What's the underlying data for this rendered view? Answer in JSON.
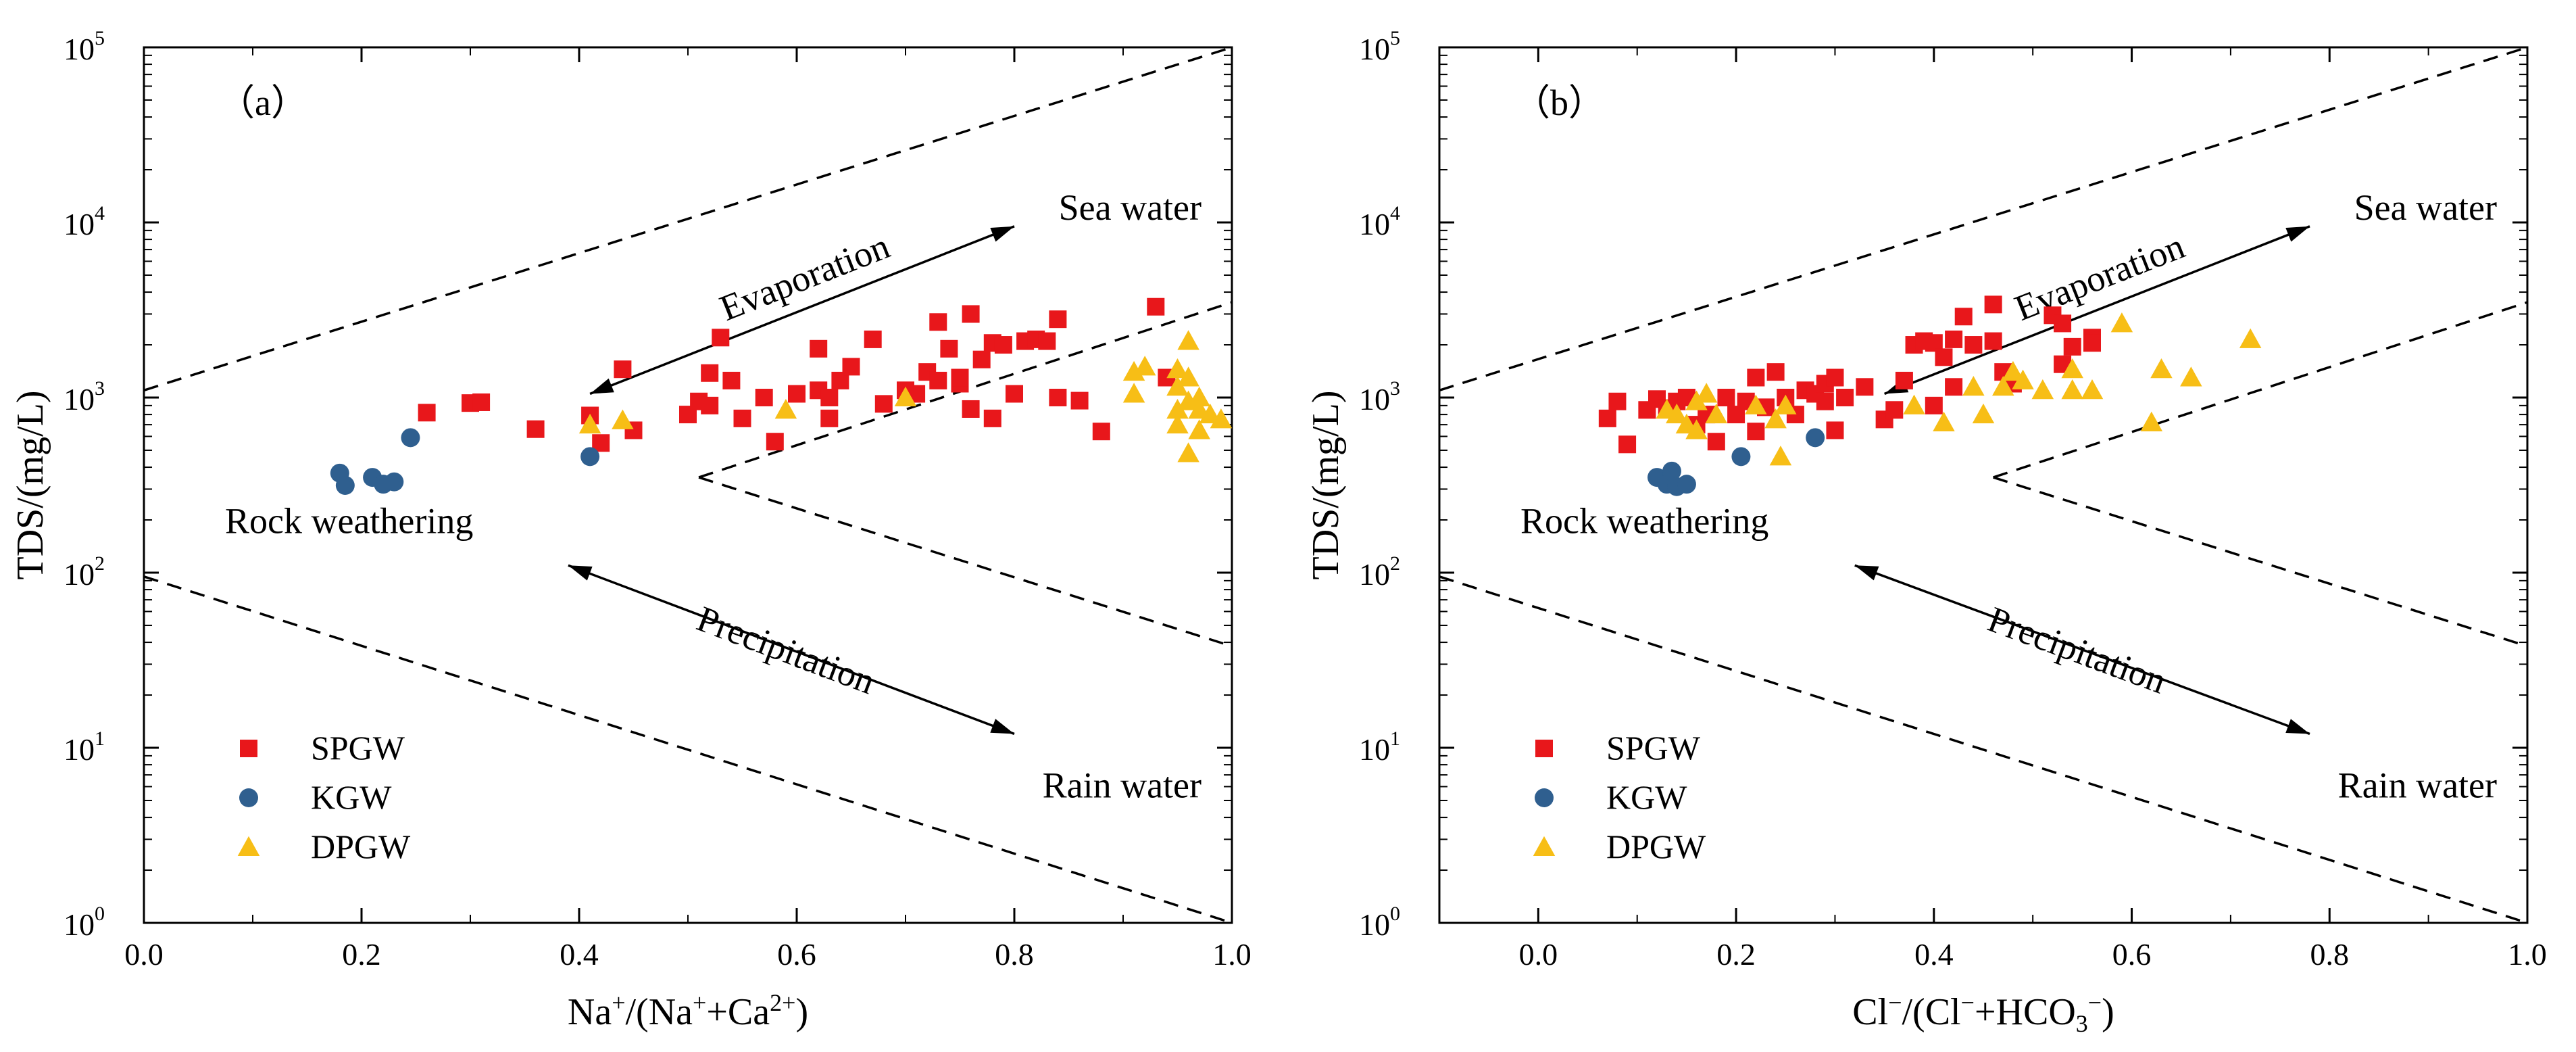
{
  "figure": {
    "panels": [
      {
        "label": "（a）",
        "ylabel": "TDS/(mg/L)",
        "xlabel_parts": [
          {
            "t": "Na",
            "s": ""
          },
          {
            "t": "+",
            "s": "sup"
          },
          {
            "t": "/(Na",
            "s": ""
          },
          {
            "t": "+",
            "s": "sup"
          },
          {
            "t": "+Ca",
            "s": ""
          },
          {
            "t": "2+",
            "s": "sup"
          },
          {
            "t": ")",
            "s": ""
          }
        ],
        "x_tick_labels": [
          "0.0",
          "0.2",
          "0.4",
          "0.6",
          "0.8",
          "1.0"
        ],
        "y_tick_labels": [
          {
            "base": "10",
            "exp": "0"
          },
          {
            "base": "10",
            "exp": "1"
          },
          {
            "base": "10",
            "exp": "2"
          },
          {
            "base": "10",
            "exp": "3"
          },
          {
            "base": "10",
            "exp": "4"
          },
          {
            "base": "10",
            "exp": "5"
          }
        ],
        "annotations": {
          "evaporation": "Evaporation",
          "precipitation": "Precipitation",
          "sea_water": "Sea water",
          "rain_water": "Rain water",
          "rock_weathering": "Rock weathering"
        },
        "legend": [
          "SPGW",
          "KGW",
          "DPGW"
        ]
      },
      {
        "label": "（b）",
        "ylabel": "TDS/(mg/L)",
        "xlabel_parts": [
          {
            "t": "Cl",
            "s": ""
          },
          {
            "t": "−",
            "s": "sup"
          },
          {
            "t": "/(Cl",
            "s": ""
          },
          {
            "t": "−",
            "s": "sup"
          },
          {
            "t": "+HCO",
            "s": ""
          },
          {
            "t": "3",
            "s": "sub"
          },
          {
            "t": "−",
            "s": "sup"
          },
          {
            "t": ")",
            "s": ""
          }
        ],
        "x_tick_labels": [
          "0.0",
          "0.2",
          "0.4",
          "0.6",
          "0.8",
          "1.0"
        ],
        "y_tick_labels": [
          {
            "base": "10",
            "exp": "0"
          },
          {
            "base": "10",
            "exp": "1"
          },
          {
            "base": "10",
            "exp": "2"
          },
          {
            "base": "10",
            "exp": "3"
          },
          {
            "base": "10",
            "exp": "4"
          },
          {
            "base": "10",
            "exp": "5"
          }
        ],
        "annotations": {
          "evaporation": "Evaporation",
          "precipitation": "Precipitation",
          "sea_water": "Sea water",
          "rain_water": "Rain water",
          "rock_weathering": "Rock weathering"
        },
        "legend": [
          "SPGW",
          "KGW",
          "DPGW"
        ]
      }
    ],
    "colors": {
      "SPGW": "#e8171b",
      "KGW": "#2f5f8f",
      "DPGW": "#f7be16"
    }
  },
  "chart_data": [
    {
      "type": "scatter",
      "title": "(a)",
      "xlabel": "Na+/(Na++Ca2+)",
      "ylabel": "TDS/(mg/L)",
      "xlim": [
        0,
        1
      ],
      "ylim": [
        1,
        100000
      ],
      "yscale": "log",
      "legend_position": "bottom-left",
      "gibbs_boundaries": [
        {
          "points": [
            [
              0,
              1100
            ],
            [
              1,
              100000
            ]
          ]
        },
        {
          "points": [
            [
              0,
              95
            ],
            [
              1,
              1.0
            ]
          ]
        },
        {
          "points": [
            [
              0.51,
              350
            ],
            [
              1,
              3500
            ]
          ]
        },
        {
          "points": [
            [
              0.51,
              350
            ],
            [
              1,
              38
            ]
          ]
        }
      ],
      "arrows": [
        {
          "name": "evaporation",
          "from": [
            0.41,
            1050
          ],
          "to": [
            0.8,
            9500
          ]
        },
        {
          "name": "precipitation",
          "from": [
            0.39,
            110
          ],
          "to": [
            0.8,
            12
          ]
        }
      ],
      "series": [
        {
          "name": "SPGW",
          "marker": "square",
          "points": [
            [
              0.26,
              820
            ],
            [
              0.3,
              930
            ],
            [
              0.31,
              940
            ],
            [
              0.36,
              660
            ],
            [
              0.41,
              790
            ],
            [
              0.42,
              550
            ],
            [
              0.44,
              1450
            ],
            [
              0.45,
              650
            ],
            [
              0.5,
              800
            ],
            [
              0.51,
              950
            ],
            [
              0.52,
              900
            ],
            [
              0.52,
              1380
            ],
            [
              0.53,
              2200
            ],
            [
              0.54,
              1250
            ],
            [
              0.55,
              760
            ],
            [
              0.57,
              1000
            ],
            [
              0.58,
              560
            ],
            [
              0.6,
              1050
            ],
            [
              0.62,
              1100
            ],
            [
              0.62,
              1900
            ],
            [
              0.63,
              760
            ],
            [
              0.63,
              1000
            ],
            [
              0.64,
              1250
            ],
            [
              0.65,
              1500
            ],
            [
              0.67,
              2150
            ],
            [
              0.68,
              920
            ],
            [
              0.7,
              1100
            ],
            [
              0.71,
              1050
            ],
            [
              0.72,
              1400
            ],
            [
              0.73,
              2700
            ],
            [
              0.73,
              1250
            ],
            [
              0.74,
              1900
            ],
            [
              0.75,
              1200
            ],
            [
              0.75,
              1300
            ],
            [
              0.76,
              860
            ],
            [
              0.76,
              3000
            ],
            [
              0.77,
              1650
            ],
            [
              0.78,
              2050
            ],
            [
              0.78,
              760
            ],
            [
              0.79,
              2000
            ],
            [
              0.8,
              1050
            ],
            [
              0.81,
              2100
            ],
            [
              0.82,
              2150
            ],
            [
              0.83,
              2100
            ],
            [
              0.84,
              2800
            ],
            [
              0.84,
              1000
            ],
            [
              0.86,
              960
            ],
            [
              0.88,
              640
            ],
            [
              0.93,
              3300
            ],
            [
              0.94,
              1300
            ]
          ]
        },
        {
          "name": "KGW",
          "marker": "circle",
          "points": [
            [
              0.18,
              370
            ],
            [
              0.185,
              315
            ],
            [
              0.21,
              350
            ],
            [
              0.22,
              320
            ],
            [
              0.23,
              330
            ],
            [
              0.245,
              590
            ],
            [
              0.41,
              460
            ]
          ]
        },
        {
          "name": "DPGW",
          "marker": "triangle",
          "points": [
            [
              0.41,
              700
            ],
            [
              0.44,
              740
            ],
            [
              0.59,
              850
            ],
            [
              0.7,
              1000
            ],
            [
              0.91,
              1400
            ],
            [
              0.91,
              1050
            ],
            [
              0.92,
              1500
            ],
            [
              0.95,
              1450
            ],
            [
              0.95,
              1150
            ],
            [
              0.95,
              850
            ],
            [
              0.95,
              700
            ],
            [
              0.96,
              2100
            ],
            [
              0.96,
              1300
            ],
            [
              0.96,
              950
            ],
            [
              0.96,
              480
            ],
            [
              0.97,
              1000
            ],
            [
              0.97,
              850
            ],
            [
              0.97,
              650
            ],
            [
              0.98,
              800
            ],
            [
              0.99,
              750
            ]
          ]
        }
      ]
    },
    {
      "type": "scatter",
      "title": "(b)",
      "xlabel": "Cl−/(Cl−+HCO3−)",
      "ylabel": "TDS/(mg/L)",
      "xlim": [
        -0.1,
        1
      ],
      "ylim": [
        1,
        100000
      ],
      "yscale": "log",
      "legend_position": "bottom-left",
      "gibbs_boundaries": [
        {
          "points": [
            [
              -0.1,
              1100
            ],
            [
              1,
              100000
            ]
          ]
        },
        {
          "points": [
            [
              -0.1,
              95
            ],
            [
              1,
              1.0
            ]
          ]
        },
        {
          "points": [
            [
              0.46,
              350
            ],
            [
              1,
              3500
            ]
          ]
        },
        {
          "points": [
            [
              0.46,
              350
            ],
            [
              1,
              38
            ]
          ]
        }
      ],
      "arrows": [
        {
          "name": "evaporation",
          "from": [
            0.35,
            1050
          ],
          "to": [
            0.78,
            9500
          ]
        },
        {
          "name": "precipitation",
          "from": [
            0.32,
            110
          ],
          "to": [
            0.78,
            12
          ]
        }
      ],
      "series": [
        {
          "name": "SPGW",
          "marker": "square",
          "points": [
            [
              0.07,
              760
            ],
            [
              0.08,
              950
            ],
            [
              0.09,
              540
            ],
            [
              0.11,
              850
            ],
            [
              0.12,
              980
            ],
            [
              0.13,
              870
            ],
            [
              0.14,
              950
            ],
            [
              0.15,
              1000
            ],
            [
              0.16,
              700
            ],
            [
              0.17,
              800
            ],
            [
              0.18,
              560
            ],
            [
              0.19,
              1000
            ],
            [
              0.2,
              800
            ],
            [
              0.21,
              950
            ],
            [
              0.22,
              640
            ],
            [
              0.22,
              1300
            ],
            [
              0.23,
              880
            ],
            [
              0.24,
              1400
            ],
            [
              0.25,
              1000
            ],
            [
              0.26,
              800
            ],
            [
              0.27,
              1100
            ],
            [
              0.28,
              1050
            ],
            [
              0.29,
              1200
            ],
            [
              0.29,
              950
            ],
            [
              0.3,
              1300
            ],
            [
              0.3,
              650
            ],
            [
              0.31,
              1000
            ],
            [
              0.33,
              1150
            ],
            [
              0.35,
              750
            ],
            [
              0.36,
              850
            ],
            [
              0.37,
              1250
            ],
            [
              0.38,
              2000
            ],
            [
              0.39,
              2100
            ],
            [
              0.4,
              2050
            ],
            [
              0.4,
              900
            ],
            [
              0.41,
              1700
            ],
            [
              0.42,
              1150
            ],
            [
              0.43,
              2900
            ],
            [
              0.44,
              2000
            ],
            [
              0.46,
              3400
            ],
            [
              0.46,
              2100
            ],
            [
              0.47,
              1400
            ],
            [
              0.48,
              1200
            ],
            [
              0.52,
              2950
            ],
            [
              0.53,
              1550
            ],
            [
              0.53,
              2650
            ],
            [
              0.54,
              1950
            ],
            [
              0.56,
              2200
            ],
            [
              0.56,
              2050
            ],
            [
              0.42,
              2150
            ]
          ]
        },
        {
          "name": "KGW",
          "marker": "circle",
          "points": [
            [
              0.12,
              350
            ],
            [
              0.13,
              320
            ],
            [
              0.135,
              380
            ],
            [
              0.14,
              310
            ],
            [
              0.15,
              320
            ],
            [
              0.205,
              460
            ],
            [
              0.28,
              590
            ]
          ]
        },
        {
          "name": "DPGW",
          "marker": "triangle",
          "points": [
            [
              0.13,
              850
            ],
            [
              0.14,
              800
            ],
            [
              0.15,
              700
            ],
            [
              0.16,
              650
            ],
            [
              0.16,
              950
            ],
            [
              0.17,
              1050
            ],
            [
              0.18,
              800
            ],
            [
              0.22,
              900
            ],
            [
              0.24,
              750
            ],
            [
              0.245,
              460
            ],
            [
              0.25,
              900
            ],
            [
              0.38,
              900
            ],
            [
              0.41,
              720
            ],
            [
              0.44,
              1150
            ],
            [
              0.45,
              800
            ],
            [
              0.47,
              1150
            ],
            [
              0.48,
              1400
            ],
            [
              0.49,
              1250
            ],
            [
              0.51,
              1100
            ],
            [
              0.54,
              1100
            ],
            [
              0.56,
              1100
            ],
            [
              0.59,
              2650
            ],
            [
              0.62,
              720
            ],
            [
              0.63,
              1450
            ],
            [
              0.66,
              1300
            ],
            [
              0.72,
              2150
            ],
            [
              0.54,
              1450
            ]
          ]
        }
      ]
    }
  ]
}
